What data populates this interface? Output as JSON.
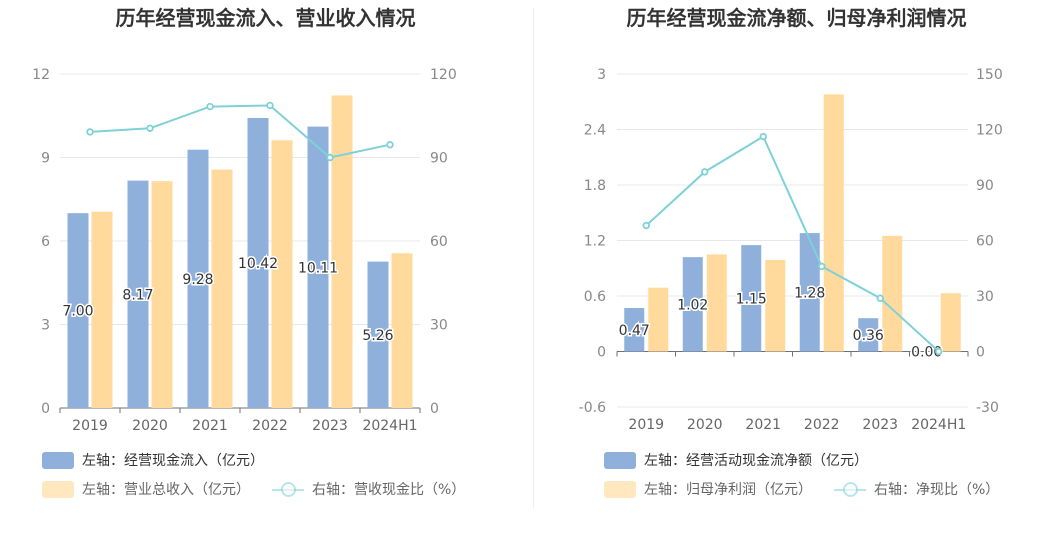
{
  "colors": {
    "bar1": "#8eb0db",
    "bar2": "#ffda9c",
    "line": "#7fd1d8",
    "grid": "#e6e8ee",
    "axis": "#888888"
  },
  "chart_data": [
    {
      "type": "bar+line",
      "title": "历年经营现金流入、营业收入情况",
      "categories": [
        "2019",
        "2020",
        "2021",
        "2022",
        "2023",
        "2024H1"
      ],
      "left_axis": {
        "min": 0,
        "max": 12,
        "ticks": [
          "0",
          "3",
          "6",
          "9",
          "12"
        ]
      },
      "right_axis": {
        "min": 0,
        "max": 120,
        "ticks": [
          "0",
          "30",
          "60",
          "90",
          "120"
        ]
      },
      "series": [
        {
          "name": "左轴：经营现金流入（亿元）",
          "kind": "bar",
          "axis": "left",
          "values": [
            7.0,
            8.17,
            9.28,
            10.42,
            10.11,
            5.26
          ],
          "labels": [
            "7.00",
            "8.17",
            "9.28",
            "10.42",
            "10.11",
            "5.26"
          ]
        },
        {
          "name": "左轴：营业总收入（亿元）",
          "kind": "bar",
          "axis": "left",
          "values": [
            7.05,
            8.15,
            8.57,
            9.62,
            11.23,
            5.56
          ]
        },
        {
          "name": "右轴：营收现金比（%）",
          "kind": "line",
          "axis": "right",
          "values": [
            99.2,
            100.5,
            108.3,
            108.7,
            90.0,
            94.6
          ]
        }
      ]
    },
    {
      "type": "bar+line",
      "title": "历年经营现金流净额、归母净利润情况",
      "categories": [
        "2019",
        "2020",
        "2021",
        "2022",
        "2023",
        "2024H1"
      ],
      "left_axis": {
        "min": -0.6,
        "max": 3,
        "ticks": [
          "-0.6",
          "0",
          "0.6",
          "1.2",
          "1.8",
          "2.4",
          "3"
        ]
      },
      "right_axis": {
        "min": -30,
        "max": 150,
        "ticks": [
          "-30",
          "0",
          "30",
          "60",
          "90",
          "120",
          "150"
        ]
      },
      "series": [
        {
          "name": "左轴：经营活动现金流净额（亿元）",
          "kind": "bar",
          "axis": "left",
          "values": [
            0.47,
            1.02,
            1.15,
            1.28,
            0.36,
            0.0
          ],
          "labels": [
            "0.47",
            "1.02",
            "1.15",
            "1.28",
            "0.36",
            "0.00"
          ]
        },
        {
          "name": "左轴：归母净利润（亿元）",
          "kind": "bar",
          "axis": "left",
          "values": [
            0.69,
            1.05,
            0.99,
            2.78,
            1.25,
            0.63
          ]
        },
        {
          "name": "右轴：净现比（%）",
          "kind": "line",
          "axis": "right",
          "values": [
            68.1,
            97.1,
            116.2,
            46.0,
            28.8,
            0.0
          ]
        }
      ]
    }
  ]
}
